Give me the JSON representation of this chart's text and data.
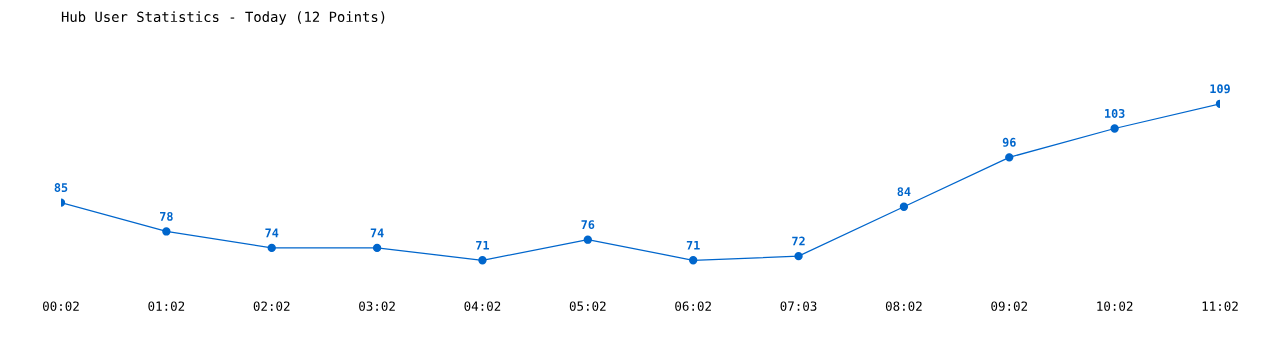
{
  "chart_data": {
    "type": "line",
    "title": "Hub User Statistics - Today (12 Points)",
    "categories": [
      "00:02",
      "01:02",
      "02:02",
      "03:02",
      "04:02",
      "05:02",
      "06:02",
      "07:03",
      "08:02",
      "09:02",
      "10:02",
      "11:02"
    ],
    "series": [
      {
        "color": "#0066cc",
        "values": [
          85,
          78,
          74,
          74,
          71,
          76,
          71,
          72,
          84,
          96,
          103,
          109
        ]
      }
    ],
    "data_labels": true,
    "marker": "circle",
    "line_style": "solid",
    "grid": false,
    "legend": false,
    "tick_labels": "x"
  }
}
